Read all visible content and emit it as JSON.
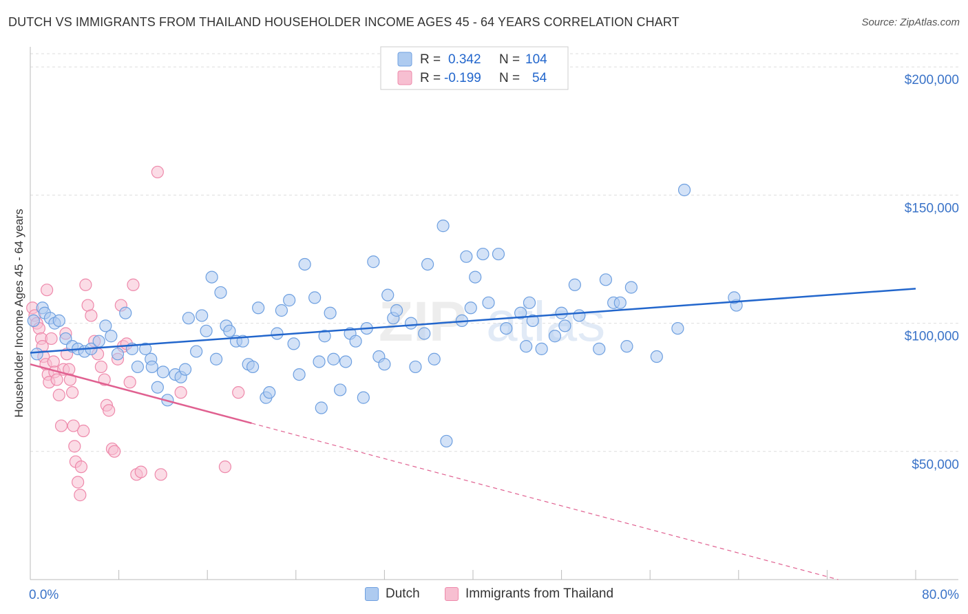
{
  "title": "DUTCH VS IMMIGRANTS FROM THAILAND HOUSEHOLDER INCOME AGES 45 - 64 YEARS CORRELATION CHART",
  "source": "Source: ZipAtlas.com",
  "watermark": "ZIPatlas",
  "colors": {
    "dutch": "#6d9fe0",
    "dutch_fill": "#aecbf0",
    "dutch_line": "#2266cc",
    "thai": "#ee88aa",
    "thai_fill": "#f7bfd1",
    "thai_line": "#e06090",
    "axis_text": "#3a73c8",
    "grid": "#dddddd"
  },
  "legend": {
    "rows": [
      {
        "r_label": "R =",
        "r_value": "0.342",
        "n_label": "N =",
        "n_value": "104"
      },
      {
        "r_label": "R =",
        "r_value": "-0.199",
        "n_label": "N =",
        "n_value": "54"
      }
    ]
  },
  "bottom_legend": [
    "Dutch",
    "Immigrants from Thailand"
  ],
  "chart_data": {
    "type": "scatter",
    "title": "DUTCH VS IMMIGRANTS FROM THAILAND HOUSEHOLDER INCOME AGES 45 - 64 YEARS CORRELATION CHART",
    "xlabel": "",
    "ylabel": "Householder Income Ages 45 - 64 years",
    "xlim": [
      0,
      80
    ],
    "ylim": [
      0,
      210000
    ],
    "x_tick_labels": [
      "0.0%",
      "80.0%"
    ],
    "y_ticks": [
      50000,
      100000,
      150000,
      200000
    ],
    "y_tick_labels": [
      "$50,000",
      "$100,000",
      "$150,000",
      "$200,000"
    ],
    "grid": "horizontal dashed",
    "legend_position": "top-center",
    "series": [
      {
        "name": "Dutch",
        "r": 0.342,
        "n": 104,
        "trend": {
          "x": [
            0,
            80
          ],
          "y": [
            88500,
            113500
          ],
          "style": "solid"
        },
        "points": [
          [
            0.3,
            101000
          ],
          [
            0.6,
            88000
          ],
          [
            1.1,
            106000
          ],
          [
            1.3,
            104000
          ],
          [
            1.8,
            102000
          ],
          [
            2.2,
            100000
          ],
          [
            2.6,
            101000
          ],
          [
            3.2,
            94000
          ],
          [
            3.8,
            91000
          ],
          [
            4.3,
            90000
          ],
          [
            4.9,
            89000
          ],
          [
            5.5,
            90000
          ],
          [
            6.2,
            93000
          ],
          [
            6.8,
            99000
          ],
          [
            7.3,
            95000
          ],
          [
            7.9,
            88000
          ],
          [
            8.6,
            104000
          ],
          [
            9.2,
            90000
          ],
          [
            9.7,
            83000
          ],
          [
            10.4,
            90000
          ],
          [
            10.9,
            86000
          ],
          [
            11.5,
            75000
          ],
          [
            12.0,
            81000
          ],
          [
            12.4,
            70000
          ],
          [
            13.1,
            80000
          ],
          [
            13.6,
            79000
          ],
          [
            14.0,
            82000
          ],
          [
            14.3,
            102000
          ],
          [
            15.0,
            89000
          ],
          [
            15.5,
            103000
          ],
          [
            15.9,
            97000
          ],
          [
            16.4,
            118000
          ],
          [
            16.8,
            86000
          ],
          [
            17.2,
            112000
          ],
          [
            17.7,
            99000
          ],
          [
            18.0,
            97000
          ],
          [
            18.6,
            93000
          ],
          [
            19.2,
            93000
          ],
          [
            19.7,
            84000
          ],
          [
            20.1,
            83000
          ],
          [
            20.6,
            106000
          ],
          [
            21.3,
            71000
          ],
          [
            21.6,
            73000
          ],
          [
            22.3,
            96000
          ],
          [
            22.7,
            105000
          ],
          [
            23.4,
            109000
          ],
          [
            23.8,
            92000
          ],
          [
            24.3,
            80000
          ],
          [
            24.8,
            123000
          ],
          [
            25.7,
            110000
          ],
          [
            26.1,
            85000
          ],
          [
            26.6,
            95000
          ],
          [
            27.1,
            104000
          ],
          [
            27.4,
            86000
          ],
          [
            28.0,
            74000
          ],
          [
            28.5,
            85000
          ],
          [
            28.9,
            96000
          ],
          [
            29.4,
            93000
          ],
          [
            30.1,
            71000
          ],
          [
            30.4,
            98000
          ],
          [
            31.0,
            124000
          ],
          [
            31.5,
            87000
          ],
          [
            32.0,
            84000
          ],
          [
            32.3,
            111000
          ],
          [
            32.8,
            102000
          ],
          [
            33.1,
            105000
          ],
          [
            34.4,
            100000
          ],
          [
            35.6,
            96000
          ],
          [
            35.9,
            123000
          ],
          [
            36.5,
            86000
          ],
          [
            34.8,
            83000
          ],
          [
            37.3,
            138000
          ],
          [
            37.6,
            54000
          ],
          [
            39.0,
            101000
          ],
          [
            39.4,
            126000
          ],
          [
            39.8,
            106000
          ],
          [
            40.2,
            118000
          ],
          [
            40.9,
            127000
          ],
          [
            41.4,
            108000
          ],
          [
            42.3,
            127000
          ],
          [
            43.0,
            98000
          ],
          [
            44.3,
            104000
          ],
          [
            44.8,
            91000
          ],
          [
            45.1,
            108000
          ],
          [
            45.4,
            101000
          ],
          [
            46.2,
            90000
          ],
          [
            47.4,
            95000
          ],
          [
            48.0,
            104000
          ],
          [
            48.3,
            99000
          ],
          [
            49.2,
            115000
          ],
          [
            49.6,
            103000
          ],
          [
            51.4,
            90000
          ],
          [
            52.0,
            117000
          ],
          [
            52.7,
            108000
          ],
          [
            53.3,
            108000
          ],
          [
            53.9,
            91000
          ],
          [
            54.3,
            114000
          ],
          [
            56.6,
            87000
          ],
          [
            58.5,
            98000
          ],
          [
            59.1,
            152000
          ],
          [
            63.8,
            107000
          ],
          [
            63.6,
            110000
          ],
          [
            26.3,
            67000
          ],
          [
            11.0,
            83000
          ]
        ]
      },
      {
        "name": "Immigrants from Thailand",
        "r": -0.199,
        "n": 54,
        "trend": {
          "x": [
            0,
            20
          ],
          "y": [
            84000,
            61000
          ],
          "style": "solid"
        },
        "trend_extension": {
          "x": [
            20,
            73
          ],
          "y": [
            61000,
            0
          ],
          "style": "dashed"
        },
        "points": [
          [
            0.2,
            106000
          ],
          [
            0.4,
            103000
          ],
          [
            0.6,
            100000
          ],
          [
            0.8,
            98000
          ],
          [
            1.0,
            94000
          ],
          [
            1.1,
            91000
          ],
          [
            1.2,
            87000
          ],
          [
            1.4,
            84000
          ],
          [
            1.6,
            80000
          ],
          [
            1.7,
            77000
          ],
          [
            1.9,
            94000
          ],
          [
            2.1,
            85000
          ],
          [
            2.2,
            81000
          ],
          [
            2.4,
            78000
          ],
          [
            2.6,
            72000
          ],
          [
            2.8,
            60000
          ],
          [
            3.0,
            82000
          ],
          [
            3.2,
            96000
          ],
          [
            3.3,
            88000
          ],
          [
            3.5,
            82000
          ],
          [
            3.6,
            78000
          ],
          [
            3.8,
            73000
          ],
          [
            3.9,
            60000
          ],
          [
            4.0,
            52000
          ],
          [
            4.1,
            46000
          ],
          [
            4.3,
            38000
          ],
          [
            4.5,
            33000
          ],
          [
            4.6,
            44000
          ],
          [
            4.8,
            58000
          ],
          [
            5.0,
            115000
          ],
          [
            5.2,
            107000
          ],
          [
            5.5,
            103000
          ],
          [
            5.8,
            93000
          ],
          [
            6.1,
            88000
          ],
          [
            6.4,
            83000
          ],
          [
            6.7,
            78000
          ],
          [
            6.9,
            68000
          ],
          [
            7.1,
            66000
          ],
          [
            7.4,
            51000
          ],
          [
            7.6,
            50000
          ],
          [
            7.9,
            86000
          ],
          [
            8.2,
            107000
          ],
          [
            8.4,
            91000
          ],
          [
            8.7,
            92000
          ],
          [
            9.0,
            77000
          ],
          [
            9.3,
            115000
          ],
          [
            9.6,
            41000
          ],
          [
            10.0,
            42000
          ],
          [
            11.5,
            159000
          ],
          [
            11.8,
            41000
          ],
          [
            13.6,
            73000
          ],
          [
            17.6,
            44000
          ],
          [
            18.8,
            73000
          ],
          [
            1.5,
            113000
          ]
        ]
      }
    ]
  }
}
